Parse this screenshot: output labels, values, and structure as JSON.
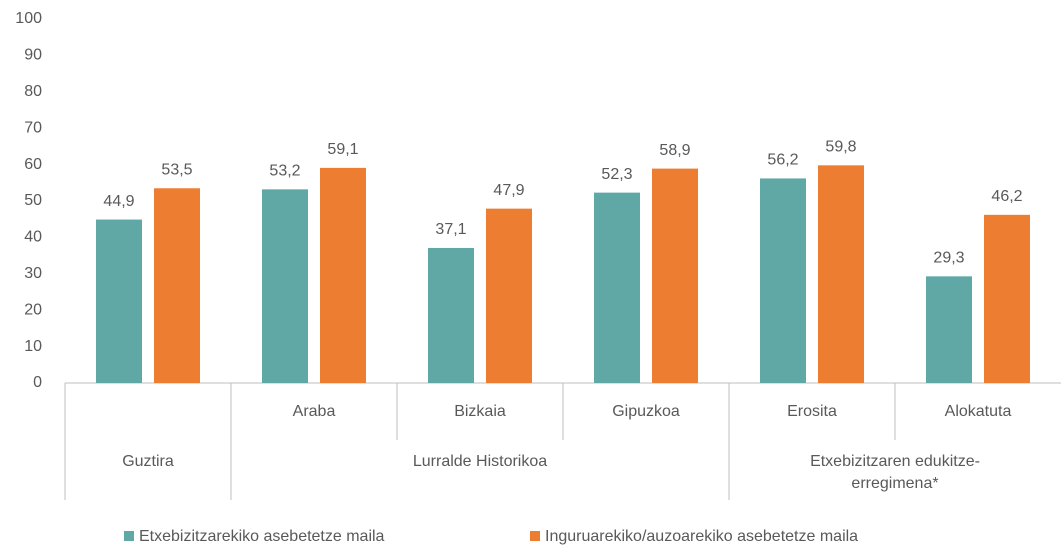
{
  "chart_data": {
    "type": "bar",
    "groups": [
      {
        "name": "Guztira",
        "categories": [
          null
        ]
      },
      {
        "name": "Lurralde Historikoa",
        "categories": [
          "Araba",
          "Bizkaia",
          "Gipuzkoa"
        ]
      },
      {
        "name": "Etxebizitzaren edukitze-erregimena*",
        "categories": [
          "Erosita",
          "Alokatuta"
        ]
      }
    ],
    "series": [
      {
        "name": "Etxebizitzarekiko asebetetze maila",
        "color": "#5fa8a6",
        "values": [
          44.9,
          53.2,
          37.1,
          52.3,
          56.2,
          29.3
        ],
        "value_labels": [
          "44,9",
          "53,2",
          "37,1",
          "52,3",
          "56,2",
          "29,3"
        ]
      },
      {
        "name": "Inguruarekiko/auzoarekiko asebetetze maila",
        "color": "#ed7d31",
        "values": [
          53.5,
          59.1,
          47.9,
          58.9,
          59.8,
          46.2
        ],
        "value_labels": [
          "53,5",
          "59,1",
          "47,9",
          "58,9",
          "59,8",
          "46,2"
        ]
      }
    ],
    "ylim": [
      0,
      100
    ],
    "yticks": [
      0,
      10,
      20,
      30,
      40,
      50,
      60,
      70,
      80,
      90,
      100
    ],
    "grid": false,
    "legend": "bottom"
  }
}
